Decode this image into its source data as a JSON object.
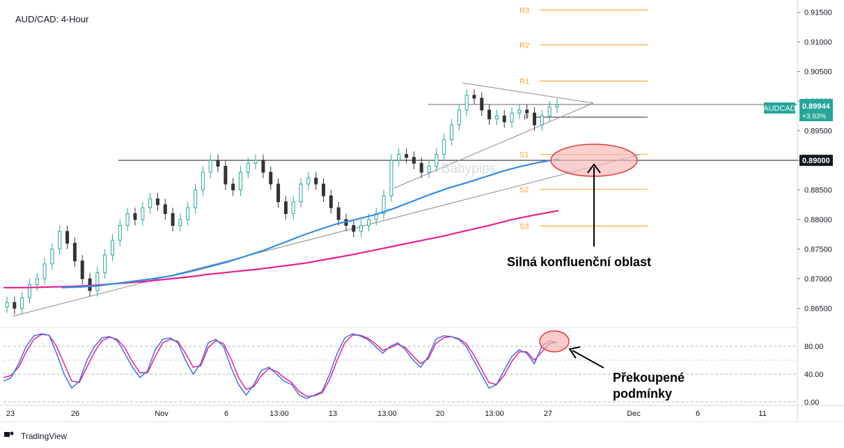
{
  "chart_data": {
    "type": "candlestick",
    "title": "AUD/CAD: 4-Hour",
    "symbol": "AUDCAD",
    "last_price": "0.89944",
    "change_pct": "+3.93%",
    "watermark": "Babypips",
    "branding": "TradingView",
    "price_axis": {
      "ylim": [
        0.862,
        0.9165
      ],
      "ticks": [
        "0.91500",
        "0.91000",
        "0.90500",
        "0.90000",
        "0.89500",
        "0.89000",
        "0.88500",
        "0.88000",
        "0.87500",
        "0.87000",
        "0.86500"
      ]
    },
    "time_axis": {
      "ticks": [
        "23",
        "26",
        "Nov",
        "6",
        "13:00",
        "13",
        "13:00",
        "20",
        "13:00",
        "27",
        "Dec",
        "6",
        "11"
      ]
    },
    "level_label": "0.89000",
    "level_price": 0.89,
    "pivots": [
      {
        "name": "R3",
        "price": 0.9154
      },
      {
        "name": "R2",
        "price": 0.9095
      },
      {
        "name": "R1",
        "price": 0.9034
      },
      {
        "name": "P",
        "price": 0.8973
      },
      {
        "name": "S1",
        "price": 0.891
      },
      {
        "name": "S2",
        "price": 0.8851
      },
      {
        "name": "S3",
        "price": 0.8789
      }
    ],
    "pivot_color": "#f5a623",
    "resistance_price": 0.89944,
    "close_series": [
      0.866,
      0.865,
      0.8668,
      0.869,
      0.87,
      0.8725,
      0.875,
      0.878,
      0.876,
      0.873,
      0.87,
      0.868,
      0.871,
      0.874,
      0.8765,
      0.879,
      0.881,
      0.88,
      0.882,
      0.8835,
      0.8825,
      0.881,
      0.879,
      0.88,
      0.882,
      0.885,
      0.888,
      0.89,
      0.889,
      0.886,
      0.885,
      0.888,
      0.8895,
      0.89,
      0.888,
      0.886,
      0.883,
      0.881,
      0.883,
      0.886,
      0.887,
      0.886,
      0.884,
      0.882,
      0.88,
      0.879,
      0.878,
      0.879,
      0.88,
      0.881,
      0.884,
      0.89,
      0.891,
      0.8905,
      0.8895,
      0.888,
      0.889,
      0.891,
      0.8935,
      0.896,
      0.8985,
      0.901,
      0.9005,
      0.8985,
      0.897,
      0.8975,
      0.8965,
      0.898,
      0.8985,
      0.898,
      0.896,
      0.8975,
      0.899,
      0.8994
    ],
    "ema_fast": [
      0.8685,
      0.8686,
      0.8688,
      0.8692,
      0.8696,
      0.87,
      0.8705,
      0.8712,
      0.872,
      0.8728,
      0.8738,
      0.8748,
      0.876,
      0.8772,
      0.8783,
      0.8793,
      0.88,
      0.8808,
      0.8818,
      0.883,
      0.8842,
      0.8853,
      0.8862,
      0.8872,
      0.8882,
      0.889,
      0.8897,
      0.8902
    ],
    "ema_slow": [
      0.8685,
      0.8685,
      0.8686,
      0.8687,
      0.8689,
      0.8692,
      0.8695,
      0.8699,
      0.8703,
      0.8708,
      0.8712,
      0.8716,
      0.8721,
      0.8726,
      0.8733,
      0.874,
      0.8748,
      0.8756,
      0.8764,
      0.8772,
      0.8781,
      0.879,
      0.88,
      0.8808,
      0.8815
    ],
    "stoch_axis": {
      "ticks": [
        "80.00",
        "40.00",
        "0.00"
      ],
      "ylim": [
        0,
        100
      ]
    },
    "stoch_k": [
      30,
      35,
      55,
      80,
      95,
      98,
      96,
      70,
      40,
      20,
      30,
      60,
      80,
      92,
      94,
      88,
      70,
      50,
      35,
      45,
      75,
      90,
      92,
      85,
      60,
      40,
      55,
      85,
      90,
      80,
      50,
      25,
      10,
      25,
      45,
      50,
      40,
      30,
      25,
      10,
      5,
      10,
      15,
      40,
      70,
      92,
      98,
      95,
      90,
      80,
      70,
      80,
      85,
      75,
      60,
      50,
      65,
      90,
      95,
      94,
      90,
      80,
      60,
      40,
      20,
      25,
      45,
      65,
      75,
      70,
      55,
      80,
      88,
      85
    ],
    "stoch_d": [
      35,
      38,
      50,
      72,
      90,
      97,
      96,
      80,
      55,
      30,
      28,
      50,
      72,
      88,
      93,
      90,
      78,
      58,
      42,
      42,
      65,
      85,
      90,
      87,
      70,
      50,
      52,
      78,
      88,
      84,
      62,
      35,
      18,
      22,
      38,
      48,
      44,
      35,
      28,
      15,
      8,
      9,
      13,
      32,
      60,
      85,
      96,
      96,
      92,
      84,
      74,
      78,
      83,
      78,
      66,
      55,
      62,
      84,
      92,
      94,
      91,
      84,
      68,
      48,
      28,
      25,
      38,
      58,
      72,
      72,
      60,
      72,
      84,
      86
    ],
    "annotations": [
      {
        "text": "Silná konfluenční oblast"
      },
      {
        "text": "Překoupené podmínky"
      }
    ],
    "colors": {
      "up": "#26a69a",
      "down": "#333333",
      "ema_fast": "#2f8de4",
      "ema_slow": "#e91e8c",
      "stoch_k": "#3d6fe8",
      "stoch_d": "#e91e8c",
      "highlight_fill": "#f7b5b5",
      "highlight_stroke": "#e53935",
      "badge_green": "#26a69a"
    },
    "grid": false,
    "legend": "top-left"
  }
}
